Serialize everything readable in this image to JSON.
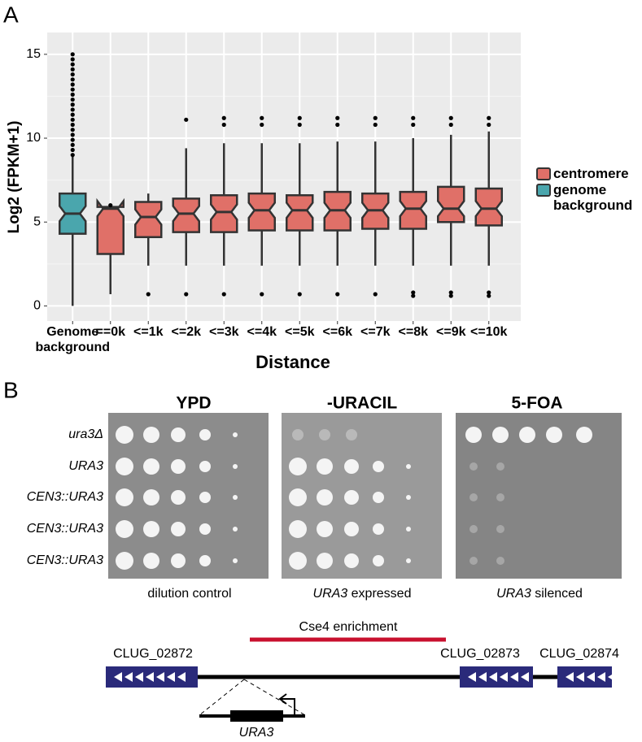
{
  "panel_labels": [
    "A",
    "B"
  ],
  "chart_data": {
    "type": "box",
    "xlabel": "Distance",
    "ylabel": "Log2 (FPKM+1)",
    "ylim": [
      -0.9,
      16.3
    ],
    "yticks": [
      0,
      5,
      10,
      15
    ],
    "grid": true,
    "categories": [
      "Genome background",
      "==0k",
      "<=1k",
      "<=2k",
      "<=3k",
      "<=4k",
      "<=5k",
      "<=6k",
      "<=7k",
      "<=8k",
      "<=9k",
      "<=10k"
    ],
    "legend": [
      {
        "name": "centromere",
        "color": "#e07068"
      },
      {
        "name": "genome background",
        "color": "#4aa6ad"
      }
    ],
    "boxes": [
      {
        "color": "#4aa6ad",
        "min": 0,
        "q1": 4.3,
        "median": 5.5,
        "q3": 6.7,
        "max": 8.9,
        "outliers": [
          9.0,
          9.3,
          9.6,
          9.9,
          10.2,
          10.5,
          10.8,
          11.1,
          11.4,
          11.7,
          12.0,
          12.3,
          12.6,
          12.9,
          13.2,
          13.5,
          13.8,
          14.1,
          14.4,
          14.7,
          15.0
        ]
      },
      {
        "color": "#e07068",
        "min": 0.7,
        "q1": 3.1,
        "median": 5.8,
        "q3": 5.9,
        "max": 5.9,
        "outliers": [
          6.0
        ]
      },
      {
        "color": "#e07068",
        "min": 2.4,
        "q1": 4.1,
        "median": 5.3,
        "q3": 6.2,
        "max": 6.7,
        "outliers": [
          0.7
        ]
      },
      {
        "color": "#e07068",
        "min": 2.4,
        "q1": 4.4,
        "median": 5.5,
        "q3": 6.4,
        "max": 9.4,
        "outliers": [
          0.7,
          11.1
        ]
      },
      {
        "color": "#e07068",
        "min": 2.4,
        "q1": 4.4,
        "median": 5.6,
        "q3": 6.6,
        "max": 9.7,
        "outliers": [
          0.7,
          10.8,
          11.2
        ]
      },
      {
        "color": "#e07068",
        "min": 2.4,
        "q1": 4.5,
        "median": 5.7,
        "q3": 6.7,
        "max": 9.7,
        "outliers": [
          0.7,
          10.8,
          11.2
        ]
      },
      {
        "color": "#e07068",
        "min": 2.4,
        "q1": 4.5,
        "median": 5.7,
        "q3": 6.6,
        "max": 9.7,
        "outliers": [
          0.7,
          10.8,
          11.2
        ]
      },
      {
        "color": "#e07068",
        "min": 2.4,
        "q1": 4.5,
        "median": 5.7,
        "q3": 6.8,
        "max": 9.8,
        "outliers": [
          0.7,
          10.8,
          11.2
        ]
      },
      {
        "color": "#e07068",
        "min": 2.4,
        "q1": 4.6,
        "median": 5.7,
        "q3": 6.7,
        "max": 9.8,
        "outliers": [
          0.7,
          10.8,
          11.2
        ]
      },
      {
        "color": "#e07068",
        "min": 2.4,
        "q1": 4.6,
        "median": 5.8,
        "q3": 6.8,
        "max": 10.0,
        "outliers": [
          0.6,
          0.8,
          10.8,
          11.2
        ]
      },
      {
        "color": "#e07068",
        "min": 2.4,
        "q1": 5.0,
        "median": 5.8,
        "q3": 7.1,
        "max": 10.2,
        "outliers": [
          0.6,
          0.8,
          10.8,
          11.2
        ]
      },
      {
        "color": "#e07068",
        "min": 2.4,
        "q1": 4.8,
        "median": 5.8,
        "q3": 7.0,
        "max": 10.4,
        "outliers": [
          0.6,
          0.8,
          10.8,
          11.2
        ]
      }
    ]
  },
  "plates": {
    "titles": [
      "YPD",
      "-URACIL",
      "5-FOA"
    ],
    "strains": [
      "ura3Δ",
      "URA3",
      "CEN3::URA3",
      "CEN3::URA3",
      "CEN3::URA3"
    ],
    "captions": [
      {
        "text": "dilution control"
      },
      {
        "gene": "URA3",
        "text": "expressed"
      },
      {
        "gene": "URA3",
        "text": "silenced"
      }
    ]
  },
  "diagram": {
    "enrichment": "Cse4 enrichment",
    "genes": [
      "CLUG_02872",
      "CLUG_02873",
      "CLUG_02874"
    ],
    "marker": "URA3"
  }
}
